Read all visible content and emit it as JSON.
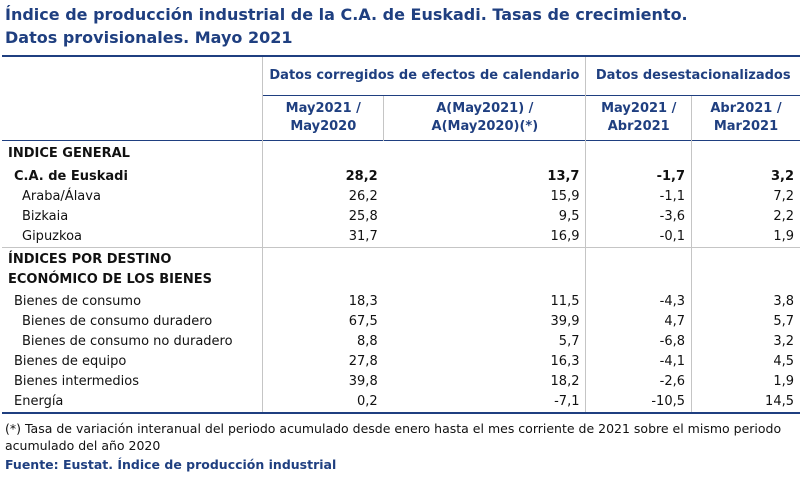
{
  "title": {
    "line1": "Índice de producción industrial de la C.A. de Euskadi. Tasas de crecimiento.",
    "line2": "Datos provisionales. Mayo 2021"
  },
  "header": {
    "group1": "Datos corregidos de efectos de calendario",
    "group2": "Datos desestacionalizados",
    "col1": [
      "May2021 /",
      "May2020"
    ],
    "col2": [
      "A(May2021) /",
      "A(May2020)(*)"
    ],
    "col3": [
      "May2021 /",
      "Abr2021"
    ],
    "col4": [
      "Abr2021 /",
      "Mar2021"
    ]
  },
  "sections": [
    {
      "title": [
        "INDICE GENERAL"
      ],
      "rows": [
        {
          "label": "C.A. de Euskadi",
          "values": [
            "28,2",
            "13,7",
            "-1,7",
            "3,2"
          ]
        },
        {
          "label": "Araba/Álava",
          "values": [
            "26,2",
            "15,9",
            "-1,1",
            "7,2"
          ]
        },
        {
          "label": "Bizkaia",
          "values": [
            "25,8",
            "9,5",
            "-3,6",
            "2,2"
          ]
        },
        {
          "label": "Gipuzkoa",
          "values": [
            "31,7",
            "16,9",
            "-0,1",
            "1,9"
          ]
        }
      ]
    },
    {
      "title": [
        "ÍNDICES POR DESTINO",
        "ECONÓMICO DE LOS BIENES"
      ],
      "rows": [
        {
          "label": "Bienes de consumo",
          "values": [
            "18,3",
            "11,5",
            "-4,3",
            "3,8"
          ]
        },
        {
          "label": "Bienes de consumo duradero",
          "values": [
            "67,5",
            "39,9",
            "4,7",
            "5,7"
          ]
        },
        {
          "label": "Bienes de consumo no duradero",
          "values": [
            "8,8",
            "5,7",
            "-6,8",
            "3,2"
          ]
        },
        {
          "label": "Bienes de equipo",
          "values": [
            "27,8",
            "16,3",
            "-4,1",
            "4,5"
          ]
        },
        {
          "label": "Bienes intermedios",
          "values": [
            "39,8",
            "18,2",
            "-2,6",
            "1,9"
          ]
        },
        {
          "label": "Energía",
          "values": [
            "0,2",
            "-7,1",
            "-10,5",
            "14,5"
          ]
        }
      ]
    }
  ],
  "footnote": "(*) Tasa de variación interanual del periodo acumulado desde enero hasta el mes corriente de 2021 sobre el mismo periodo acumulado del año 2020",
  "source": "Fuente: Eustat. Índice de producción industrial"
}
